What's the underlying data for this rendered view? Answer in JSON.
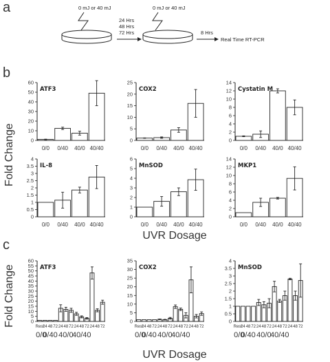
{
  "panels": {
    "a": "a",
    "b": "b",
    "c": "c"
  },
  "schematic": {
    "dose1": "0 mJ or 40 mJ",
    "times": [
      "24 Hrs",
      "48 Hrs",
      "72 Hrs"
    ],
    "dose2": "0 mJ or 40 mJ",
    "wait": "8 Hrs",
    "assay": "Real Time RT-PCR"
  },
  "labels": {
    "b_ylabel": "Fold Change",
    "b_xlabel": "UVR Dosage",
    "c_ylabel": "Fold Change",
    "c_xlabel": "UVR Dosage"
  },
  "panel_b_categories": [
    "0/0",
    "0/40",
    "40/0",
    "40/40"
  ],
  "panel_c_groups": [
    "0/0",
    "0/40",
    "40/0",
    "40/40"
  ],
  "panel_c_subcategories": [
    "Rest",
    "24",
    "48",
    "72",
    "24",
    "48",
    "72",
    "24",
    "48",
    "72",
    "24",
    "48",
    "72"
  ],
  "colors": {
    "bar_fill": "#ffffff",
    "stroke": "#222222"
  },
  "chart_data": [
    {
      "type": "bar",
      "title": "ATF3",
      "categories": [
        "0/0",
        "0/40",
        "40/0",
        "40/40"
      ],
      "values": [
        1,
        12.5,
        7.5,
        49
      ],
      "errors": [
        0.3,
        1.2,
        2,
        13
      ],
      "ylim": [
        0,
        60
      ],
      "yticks": [
        0,
        10,
        20,
        30,
        40,
        50,
        60
      ]
    },
    {
      "type": "bar",
      "title": "COX2",
      "categories": [
        "0/0",
        "0/40",
        "40/0",
        "40/40"
      ],
      "values": [
        1,
        1.2,
        4.5,
        16
      ],
      "errors": [
        0.1,
        0.3,
        1,
        6
      ],
      "ylim": [
        0,
        25
      ],
      "yticks": [
        0,
        5,
        10,
        15,
        20,
        25
      ]
    },
    {
      "type": "bar",
      "title": "Cystatin M",
      "categories": [
        "0/0",
        "0/40",
        "40/0",
        "40/40"
      ],
      "values": [
        1,
        1.5,
        12,
        8
      ],
      "errors": [
        0.1,
        0.8,
        0.5,
        1.8
      ],
      "ylim": [
        0,
        14
      ],
      "yticks": [
        0,
        2,
        4,
        6,
        8,
        10,
        12,
        14
      ]
    },
    {
      "type": "bar",
      "title": "IL-8",
      "categories": [
        "0/0",
        "0/40",
        "40/0",
        "40/40"
      ],
      "values": [
        1,
        1.15,
        1.85,
        2.75
      ],
      "errors": [
        0,
        0.55,
        0.2,
        0.8
      ],
      "ylim": [
        0,
        4
      ],
      "yticks": [
        0,
        0.5,
        1,
        1.5,
        2,
        2.5,
        3,
        3.5,
        4
      ]
    },
    {
      "type": "bar",
      "title": "MnSOD",
      "categories": [
        "0/0",
        "0/40",
        "40/0",
        "40/40"
      ],
      "values": [
        1,
        1.6,
        2.6,
        3.85
      ],
      "errors": [
        0,
        0.5,
        0.4,
        1.1
      ],
      "ylim": [
        0,
        6
      ],
      "yticks": [
        0,
        1,
        2,
        3,
        4,
        5,
        6
      ]
    },
    {
      "type": "bar",
      "title": "MKP1",
      "categories": [
        "0/0",
        "0/40",
        "40/0",
        "40/40"
      ],
      "values": [
        1,
        3.5,
        4.5,
        9.3
      ],
      "errors": [
        0,
        1,
        0.2,
        2.8
      ],
      "ylim": [
        0,
        14
      ],
      "yticks": [
        0,
        2,
        4,
        6,
        8,
        10,
        12,
        14
      ]
    },
    {
      "type": "bar",
      "title": "ATF3",
      "categories": [
        "Rest",
        "24",
        "48",
        "72",
        "24",
        "48",
        "72",
        "24",
        "48",
        "72",
        "24",
        "48",
        "72"
      ],
      "values": [
        1,
        1,
        1,
        1,
        13,
        12,
        11,
        7.5,
        4.5,
        3,
        48,
        11,
        19
      ],
      "errors": [
        0,
        0,
        0,
        0,
        3.5,
        2,
        2,
        1.5,
        1,
        0.8,
        6,
        1.5,
        2
      ],
      "ylim": [
        0,
        60
      ],
      "yticks": [
        0,
        5,
        10,
        15,
        20,
        25,
        30,
        35,
        40,
        45,
        50,
        55,
        60
      ]
    },
    {
      "type": "bar",
      "title": "COX2",
      "categories": [
        "Rest",
        "24",
        "48",
        "72",
        "24",
        "48",
        "72",
        "24",
        "48",
        "72",
        "24",
        "48",
        "72"
      ],
      "values": [
        1,
        1,
        1,
        1,
        1.2,
        1,
        1.8,
        8.5,
        7,
        3.5,
        24,
        3,
        4.5
      ],
      "errors": [
        0,
        0,
        0,
        0,
        0.2,
        0.2,
        0.5,
        1,
        0.7,
        1.5,
        7.5,
        1,
        1
      ],
      "ylim": [
        0,
        35
      ],
      "yticks": [
        0,
        5,
        10,
        15,
        20,
        25,
        30,
        35
      ]
    },
    {
      "type": "bar",
      "title": "MnSOD",
      "categories": [
        "Rest",
        "24",
        "48",
        "72",
        "24",
        "48",
        "72",
        "24",
        "48",
        "72",
        "24",
        "48",
        "72"
      ],
      "values": [
        1,
        1,
        1,
        1,
        1.25,
        1.1,
        1.2,
        2.3,
        1.35,
        1.7,
        2.8,
        1.7,
        2.7
      ],
      "errors": [
        0,
        0,
        0,
        0,
        0.2,
        0.2,
        0.3,
        0.35,
        0.1,
        0.3,
        0.05,
        0.3,
        1.1
      ],
      "ylim": [
        0,
        4
      ],
      "yticks": [
        0,
        0.5,
        1,
        1.5,
        2,
        2.5,
        3,
        3.5,
        4
      ]
    }
  ]
}
